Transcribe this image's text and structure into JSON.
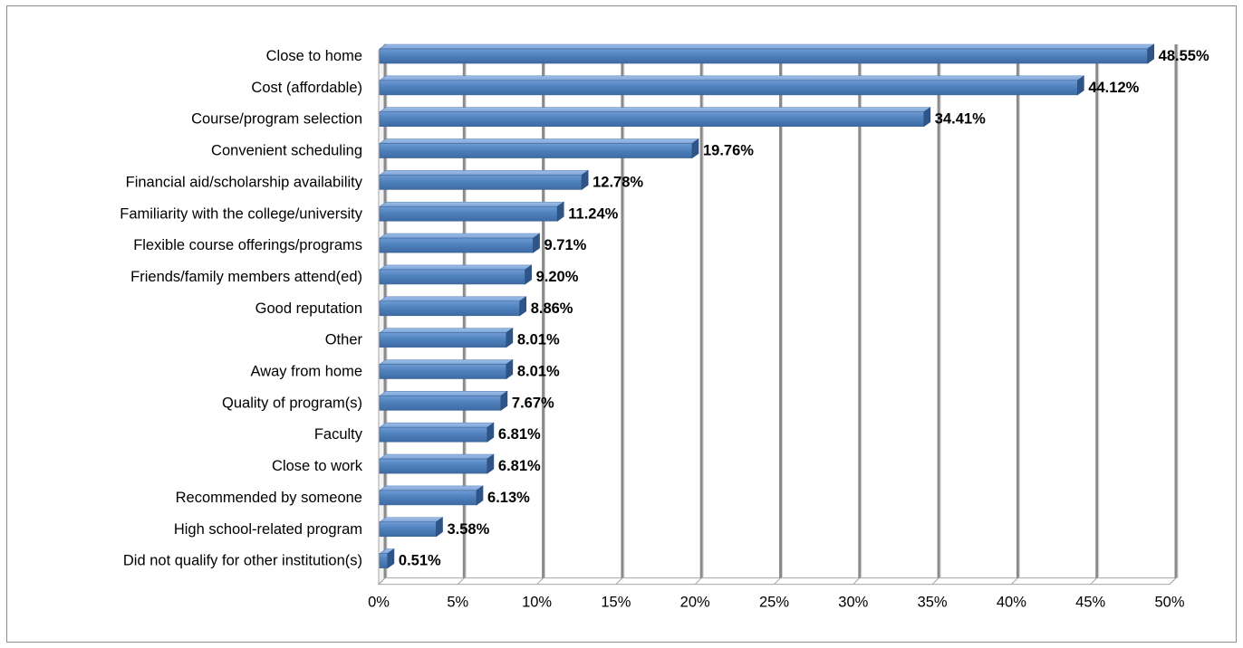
{
  "chart_data": {
    "type": "bar",
    "orientation": "horizontal",
    "title": "",
    "xlabel": "",
    "ylabel": "",
    "xlim": [
      0,
      50
    ],
    "x_ticks": [
      "0%",
      "5%",
      "10%",
      "15%",
      "20%",
      "25%",
      "30%",
      "35%",
      "40%",
      "45%",
      "50%"
    ],
    "grid": true,
    "legend": "none",
    "bar_color": "#4f81bd",
    "categories": [
      "Close to home",
      "Cost (affordable)",
      "Course/program selection",
      "Convenient scheduling",
      "Financial aid/scholarship availability",
      "Familiarity with the college/university",
      "Flexible course offerings/programs",
      "Friends/family members attend(ed)",
      "Good reputation",
      "Other",
      "Away from home",
      "Quality of program(s)",
      "Faculty",
      "Close to work",
      "Recommended by someone",
      "High school-related program",
      "Did not qualify for other institution(s)"
    ],
    "values": [
      48.55,
      44.12,
      34.41,
      19.76,
      12.78,
      11.24,
      9.71,
      9.2,
      8.86,
      8.01,
      8.01,
      7.67,
      6.81,
      6.81,
      6.13,
      3.58,
      0.51
    ],
    "data_labels": [
      "48.55%",
      "44.12%",
      "34.41%",
      "19.76%",
      "12.78%",
      "11.24%",
      "9.71%",
      "9.20%",
      "8.86%",
      "8.01%",
      "8.01%",
      "7.67%",
      "6.81%",
      "6.81%",
      "6.13%",
      "3.58%",
      "0.51%"
    ]
  }
}
